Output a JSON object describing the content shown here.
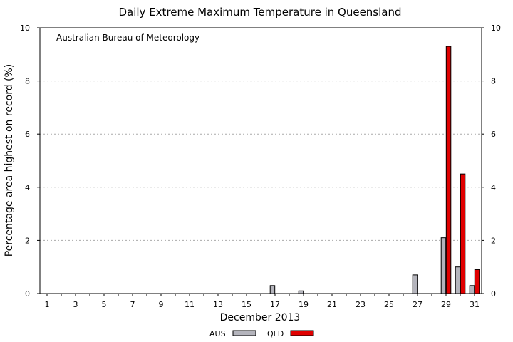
{
  "chart_data": {
    "type": "bar",
    "title": "Daily Extreme Maximum Temperature in Queensland",
    "annotation": "Australian Bureau of Meteorology",
    "xlabel": "December 2013",
    "ylabel": "Percentage area highest on record (%)",
    "ylim": [
      0,
      10
    ],
    "yticks": [
      0,
      2,
      4,
      6,
      8,
      10
    ],
    "grid": true,
    "legend_position": "bottom",
    "x": [
      1,
      2,
      3,
      4,
      5,
      6,
      7,
      8,
      9,
      10,
      11,
      12,
      13,
      14,
      15,
      16,
      17,
      18,
      19,
      20,
      21,
      22,
      23,
      24,
      25,
      26,
      27,
      28,
      29,
      30,
      31
    ],
    "xticks": [
      1,
      3,
      5,
      7,
      9,
      11,
      13,
      15,
      17,
      19,
      21,
      23,
      25,
      27,
      29,
      31
    ],
    "series": [
      {
        "name": "AUS",
        "color": "#b4b4bc",
        "values": [
          0,
          0,
          0,
          0,
          0,
          0,
          0,
          0,
          0,
          0,
          0,
          0,
          0,
          0,
          0,
          0,
          0.3,
          0,
          0.1,
          0,
          0,
          0,
          0,
          0,
          0,
          0,
          0.7,
          0,
          2.1,
          1.0,
          0.3
        ]
      },
      {
        "name": "QLD",
        "color": "#e00000",
        "values": [
          0,
          0,
          0,
          0,
          0,
          0,
          0,
          0,
          0,
          0,
          0,
          0,
          0,
          0,
          0,
          0,
          0,
          0,
          0,
          0,
          0,
          0,
          0,
          0,
          0,
          0,
          0,
          0,
          9.3,
          4.5,
          0.9
        ]
      }
    ]
  }
}
